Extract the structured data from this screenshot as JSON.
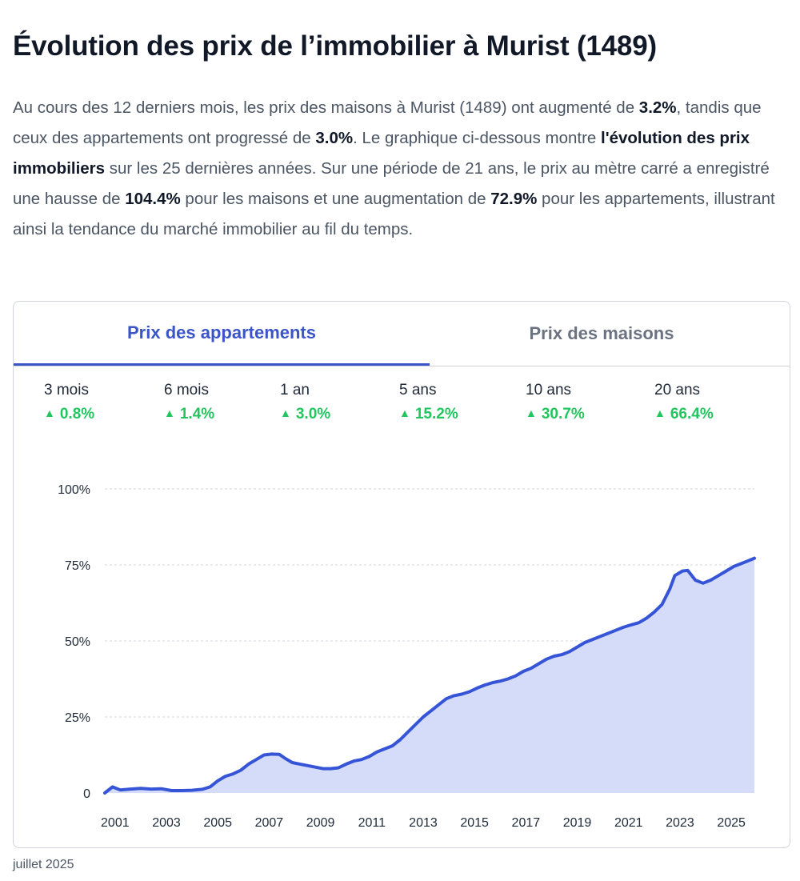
{
  "page": {
    "title": "Évolution des prix de l’immobilier à Murist (1489)",
    "intro": [
      {
        "t": "Au cours des 12 derniers mois, les prix des maisons à Murist (1489) ont augmenté de "
      },
      {
        "t": "3.2%",
        "b": true
      },
      {
        "t": ", tandis que ceux des appartements ont progressé de "
      },
      {
        "t": "3.0%",
        "b": true
      },
      {
        "t": ". Le graphique ci-dessous montre "
      },
      {
        "t": "l'évolution des prix immobiliers",
        "b": true
      },
      {
        "t": " sur les 25 dernières années. Sur une période de 21 ans, le prix au mètre carré a enregistré une hausse de "
      },
      {
        "t": "104.4%",
        "b": true
      },
      {
        "t": " pour les maisons et une augmentation de "
      },
      {
        "t": "72.9%",
        "b": true
      },
      {
        "t": " pour les appartements, illustrant ainsi la tendance du marché immobilier au fil du temps."
      }
    ],
    "footnote": "juillet 2025"
  },
  "tabs": [
    {
      "label": "Prix des appartements",
      "active": true
    },
    {
      "label": "Prix des maisons",
      "active": false
    }
  ],
  "stats": [
    {
      "label": "3 mois",
      "value": "0.8%"
    },
    {
      "label": "6 mois",
      "value": "1.4%"
    },
    {
      "label": "1 an",
      "value": "3.0%"
    },
    {
      "label": "5 ans",
      "value": "15.2%"
    },
    {
      "label": "10 ans",
      "value": "30.7%"
    },
    {
      "label": "20 ans",
      "value": "66.4%"
    }
  ],
  "colors": {
    "accent": "#3b55c9",
    "line": "#3654d6",
    "fill": "#d5dcfa",
    "positive": "#22c55e",
    "grid": "#d1d5db"
  },
  "chart_data": {
    "type": "area",
    "title": "",
    "xlabel": "",
    "ylabel": "",
    "y_ticks": [
      0,
      25,
      50,
      75,
      100
    ],
    "y_tick_labels": [
      "0",
      "25%",
      "50%",
      "75%",
      "100%"
    ],
    "x_ticks": [
      2001,
      2003,
      2005,
      2007,
      2009,
      2011,
      2013,
      2015,
      2017,
      2019,
      2021,
      2023,
      2025
    ],
    "xlim": [
      2000.6,
      2025.9
    ],
    "ylim": [
      0,
      100
    ],
    "grid": true,
    "series": [
      {
        "name": "",
        "x": [
          2000.6,
          2000.9,
          2001.2,
          2001.6,
          2002.0,
          2002.4,
          2002.8,
          2003.2,
          2003.6,
          2004.0,
          2004.4,
          2004.7,
          2005.0,
          2005.3,
          2005.6,
          2005.9,
          2006.2,
          2006.5,
          2006.8,
          2007.1,
          2007.4,
          2007.6,
          2007.9,
          2008.2,
          2008.5,
          2008.8,
          2009.1,
          2009.4,
          2009.7,
          2010.0,
          2010.3,
          2010.6,
          2010.9,
          2011.2,
          2011.5,
          2011.8,
          2012.1,
          2012.4,
          2012.7,
          2013.0,
          2013.3,
          2013.6,
          2013.9,
          2014.2,
          2014.5,
          2014.8,
          2015.1,
          2015.4,
          2015.7,
          2016.0,
          2016.3,
          2016.6,
          2016.9,
          2017.2,
          2017.5,
          2017.8,
          2018.1,
          2018.4,
          2018.7,
          2019.0,
          2019.3,
          2019.6,
          2019.9,
          2020.2,
          2020.5,
          2020.8,
          2021.1,
          2021.4,
          2021.7,
          2022.0,
          2022.3,
          2022.6,
          2022.8,
          2023.1,
          2023.3,
          2023.6,
          2023.9,
          2024.2,
          2024.5,
          2024.8,
          2025.1,
          2025.4,
          2025.7,
          2025.9
        ],
        "values": [
          0,
          2,
          1,
          1.3,
          1.5,
          1.3,
          1.4,
          0.8,
          0.8,
          0.9,
          1.2,
          2,
          4,
          5.5,
          6.3,
          7.5,
          9.5,
          11,
          12.5,
          12.8,
          12.7,
          11.5,
          10,
          9.5,
          9,
          8.5,
          8,
          8,
          8.3,
          9.5,
          10.5,
          11,
          12,
          13.5,
          14.5,
          15.5,
          17.5,
          20,
          22.5,
          25,
          27,
          29,
          31,
          32,
          32.5,
          33.3,
          34.5,
          35.5,
          36.3,
          36.8,
          37.5,
          38.5,
          40,
          41,
          42.5,
          44,
          45,
          45.5,
          46.5,
          48,
          49.5,
          50.5,
          51.5,
          52.5,
          53.5,
          54.5,
          55.3,
          56,
          57.5,
          59.5,
          62,
          67,
          71.5,
          73,
          73.2,
          70,
          69,
          70,
          71.5,
          73,
          74.5,
          75.5,
          76.5,
          77.2
        ]
      }
    ]
  }
}
